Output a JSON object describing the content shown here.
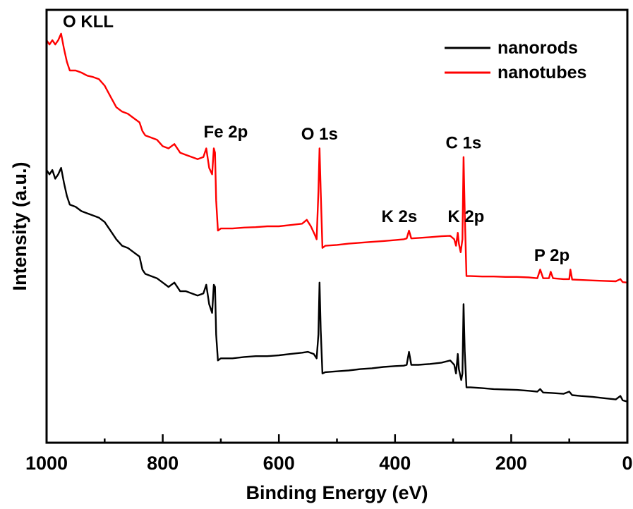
{
  "chart_data": {
    "type": "line",
    "xlabel": "Binding Energy (eV)",
    "ylabel": "Intensity (a.u.)",
    "xlim": [
      1000,
      0
    ],
    "x_reversed": true,
    "xticks": [
      1000,
      800,
      600,
      400,
      200,
      0
    ],
    "x_minor_step": 100,
    "y_ticks_shown": false,
    "ylim": [
      0,
      100
    ],
    "grid": false,
    "legend_position": "top-right",
    "series": [
      {
        "name": "nanorods",
        "color": "#000000",
        "points": [
          [
            1000,
            63
          ],
          [
            995,
            62
          ],
          [
            990,
            63
          ],
          [
            985,
            61
          ],
          [
            980,
            62
          ],
          [
            975,
            63.5
          ],
          [
            970,
            60
          ],
          [
            965,
            57
          ],
          [
            960,
            55
          ],
          [
            950,
            54.5
          ],
          [
            940,
            53.5
          ],
          [
            930,
            53
          ],
          [
            920,
            52.5
          ],
          [
            910,
            52
          ],
          [
            900,
            51
          ],
          [
            890,
            49
          ],
          [
            880,
            47
          ],
          [
            870,
            45.5
          ],
          [
            860,
            45
          ],
          [
            850,
            44
          ],
          [
            840,
            43
          ],
          [
            835,
            40
          ],
          [
            830,
            39
          ],
          [
            820,
            38.5
          ],
          [
            810,
            38
          ],
          [
            800,
            37
          ],
          [
            790,
            36
          ],
          [
            780,
            37
          ],
          [
            770,
            35
          ],
          [
            760,
            35
          ],
          [
            750,
            34.5
          ],
          [
            740,
            34
          ],
          [
            730,
            34.5
          ],
          [
            725,
            36.5
          ],
          [
            720,
            32
          ],
          [
            715,
            30
          ],
          [
            712,
            36.5
          ],
          [
            710,
            36
          ],
          [
            708,
            25
          ],
          [
            705,
            19
          ],
          [
            700,
            19.5
          ],
          [
            680,
            19.5
          ],
          [
            660,
            19.8
          ],
          [
            640,
            20
          ],
          [
            620,
            20
          ],
          [
            600,
            20.2
          ],
          [
            580,
            20.5
          ],
          [
            560,
            20.8
          ],
          [
            550,
            21
          ],
          [
            540,
            20.5
          ],
          [
            535,
            19.5
          ],
          [
            532,
            25
          ],
          [
            530,
            37
          ],
          [
            528,
            26
          ],
          [
            525,
            16
          ],
          [
            520,
            16.3
          ],
          [
            500,
            16.5
          ],
          [
            480,
            16.7
          ],
          [
            460,
            17
          ],
          [
            440,
            17.2
          ],
          [
            420,
            17.5
          ],
          [
            400,
            17.7
          ],
          [
            385,
            17.8
          ],
          [
            380,
            18
          ],
          [
            376,
            21
          ],
          [
            372,
            18
          ],
          [
            360,
            18
          ],
          [
            340,
            18.2
          ],
          [
            320,
            18.5
          ],
          [
            305,
            19
          ],
          [
            298,
            18
          ],
          [
            295,
            16
          ],
          [
            292,
            20.5
          ],
          [
            290,
            17
          ],
          [
            286,
            14.5
          ],
          [
            284,
            16
          ],
          [
            282,
            32
          ],
          [
            280,
            21
          ],
          [
            277,
            12.8
          ],
          [
            270,
            12.8
          ],
          [
            250,
            12.6
          ],
          [
            230,
            12.4
          ],
          [
            210,
            12.3
          ],
          [
            190,
            12.2
          ],
          [
            170,
            12
          ],
          [
            155,
            11.8
          ],
          [
            150,
            12.4
          ],
          [
            145,
            11.6
          ],
          [
            130,
            11.5
          ],
          [
            110,
            11.3
          ],
          [
            100,
            11.8
          ],
          [
            95,
            11
          ],
          [
            80,
            10.8
          ],
          [
            60,
            10.6
          ],
          [
            40,
            10.3
          ],
          [
            20,
            10
          ],
          [
            12,
            10.8
          ],
          [
            8,
            9.8
          ],
          [
            0,
            9.5
          ]
        ]
      },
      {
        "name": "nanotubes",
        "color": "#ff0000",
        "points": [
          [
            1000,
            93
          ],
          [
            995,
            92
          ],
          [
            990,
            93
          ],
          [
            985,
            92
          ],
          [
            980,
            93
          ],
          [
            975,
            94.5
          ],
          [
            970,
            91
          ],
          [
            965,
            88
          ],
          [
            960,
            86
          ],
          [
            950,
            86
          ],
          [
            940,
            85.5
          ],
          [
            930,
            84.8
          ],
          [
            920,
            84.5
          ],
          [
            910,
            84
          ],
          [
            900,
            82.5
          ],
          [
            890,
            80
          ],
          [
            880,
            77.5
          ],
          [
            870,
            76.5
          ],
          [
            860,
            76
          ],
          [
            850,
            75
          ],
          [
            840,
            74
          ],
          [
            835,
            72
          ],
          [
            830,
            71
          ],
          [
            820,
            70.5
          ],
          [
            810,
            70
          ],
          [
            800,
            68.5
          ],
          [
            790,
            68
          ],
          [
            780,
            69
          ],
          [
            770,
            67
          ],
          [
            760,
            66.5
          ],
          [
            750,
            66
          ],
          [
            740,
            65.5
          ],
          [
            730,
            66
          ],
          [
            725,
            68
          ],
          [
            720,
            63.5
          ],
          [
            715,
            62
          ],
          [
            712,
            68
          ],
          [
            710,
            67
          ],
          [
            708,
            56
          ],
          [
            705,
            49
          ],
          [
            700,
            49.5
          ],
          [
            680,
            49.5
          ],
          [
            660,
            49.7
          ],
          [
            640,
            49.8
          ],
          [
            620,
            50
          ],
          [
            600,
            50
          ],
          [
            580,
            50.3
          ],
          [
            560,
            50.6
          ],
          [
            552,
            51.5
          ],
          [
            545,
            50
          ],
          [
            538,
            48
          ],
          [
            535,
            47
          ],
          [
            532,
            58
          ],
          [
            530,
            68
          ],
          [
            528,
            58
          ],
          [
            525,
            45
          ],
          [
            520,
            45.5
          ],
          [
            500,
            45.7
          ],
          [
            480,
            46
          ],
          [
            460,
            46.2
          ],
          [
            440,
            46.4
          ],
          [
            420,
            46.6
          ],
          [
            400,
            46.8
          ],
          [
            385,
            47
          ],
          [
            380,
            47.2
          ],
          [
            376,
            49
          ],
          [
            372,
            47.2
          ],
          [
            360,
            47.3
          ],
          [
            340,
            47.5
          ],
          [
            320,
            47.7
          ],
          [
            305,
            47.8
          ],
          [
            298,
            47
          ],
          [
            295,
            45.5
          ],
          [
            292,
            48.5
          ],
          [
            290,
            46
          ],
          [
            287,
            44
          ],
          [
            284,
            47
          ],
          [
            282,
            66
          ],
          [
            280,
            53
          ],
          [
            277,
            38.5
          ],
          [
            270,
            38.5
          ],
          [
            250,
            38.4
          ],
          [
            230,
            38.4
          ],
          [
            210,
            38.3
          ],
          [
            190,
            38.3
          ],
          [
            170,
            38.2
          ],
          [
            155,
            38
          ],
          [
            150,
            40
          ],
          [
            145,
            38
          ],
          [
            135,
            38
          ],
          [
            132,
            39.5
          ],
          [
            128,
            38
          ],
          [
            110,
            37.8
          ],
          [
            100,
            37.8
          ],
          [
            98,
            40
          ],
          [
            95,
            37.7
          ],
          [
            80,
            37.6
          ],
          [
            60,
            37.5
          ],
          [
            40,
            37.4
          ],
          [
            20,
            37.3
          ],
          [
            12,
            37.8
          ],
          [
            8,
            37.1
          ],
          [
            0,
            37
          ]
        ]
      }
    ],
    "annotations": [
      {
        "label": "O KLL",
        "x": 972,
        "y": 96
      },
      {
        "label": "Fe 2p",
        "x": 715,
        "y": 70.5
      },
      {
        "label": "O 1s",
        "x": 530,
        "y": 70
      },
      {
        "label": "K 2s",
        "x": 380,
        "y": 51
      },
      {
        "label": "K 2p",
        "x": 290,
        "y": 51
      },
      {
        "label": "C 1s",
        "x": 282,
        "y": 68
      },
      {
        "label": "P 2p",
        "x": 130,
        "y": 42
      }
    ]
  }
}
